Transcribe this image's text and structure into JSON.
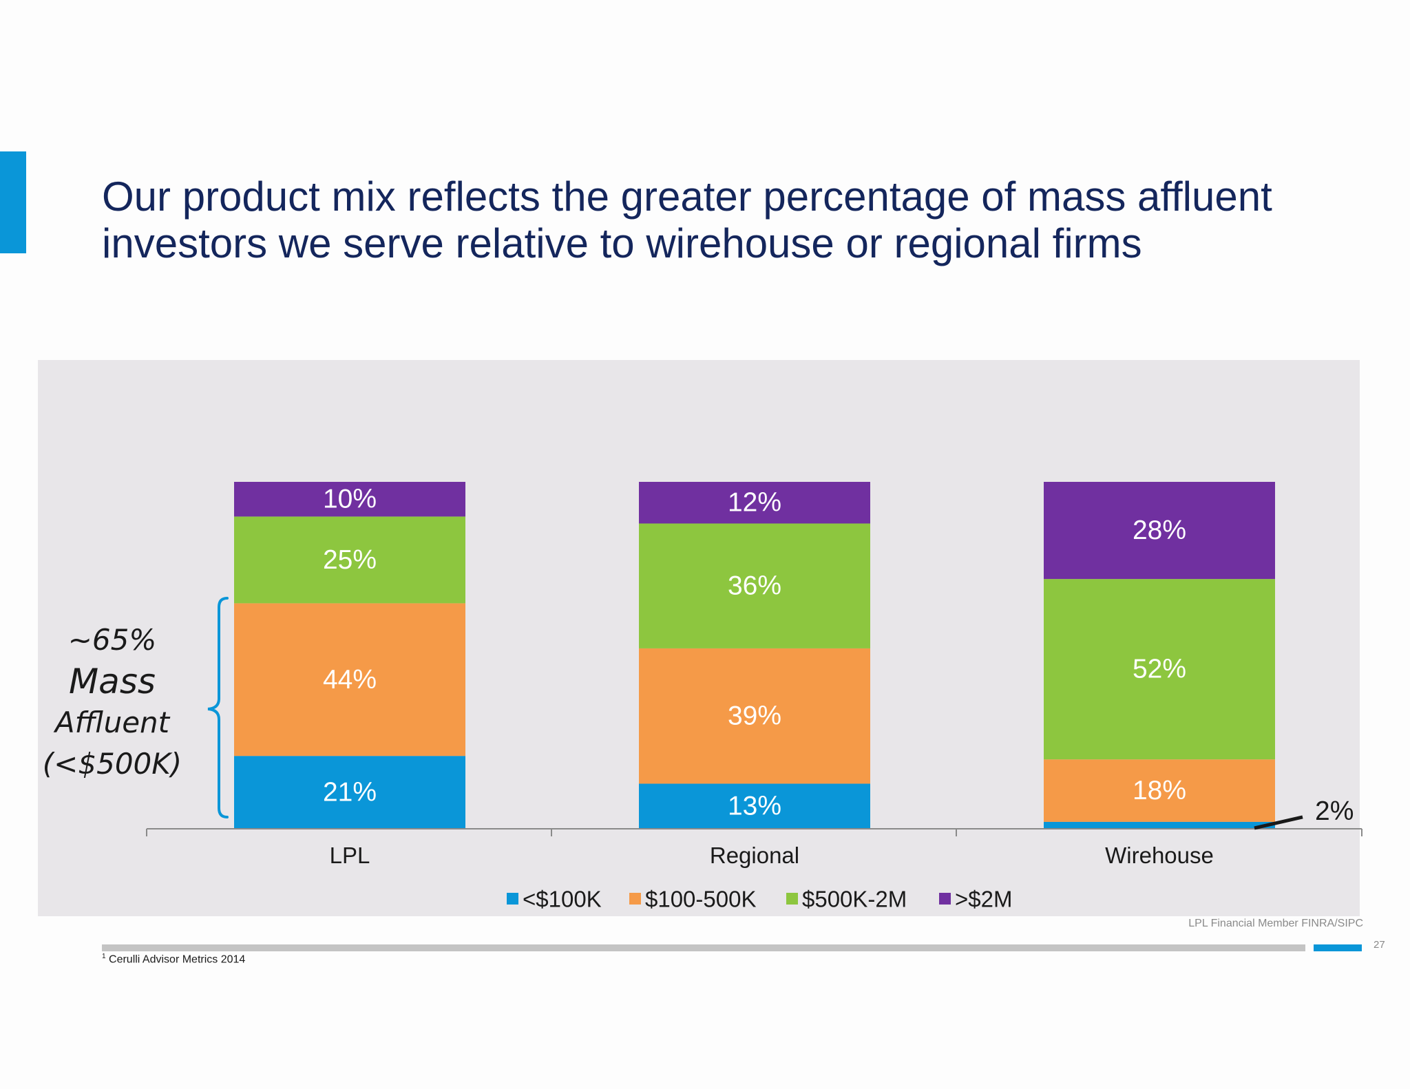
{
  "slide": {
    "title_line1": "Our product mix reflects the greater percentage of mass affluent",
    "title_line2": "investors we serve relative to wirehouse or regional firms",
    "member_text": "LPL Financial  Member FINRA/SIPC",
    "page_number": "27",
    "footnote_marker": "1",
    "footnote_text": "Cerulli Advisor Metrics 2014",
    "accent_color": "#0a96d8"
  },
  "bracket": {
    "line1": "~65%",
    "line2": "Mass",
    "line3": "Affluent",
    "line4": "(<$500K)"
  },
  "chart_data": {
    "type": "bar",
    "stacked": true,
    "categories": [
      "LPL",
      "Regional",
      "Wirehouse"
    ],
    "series": [
      {
        "name": "<$100K",
        "color": "#0a96d8",
        "values": [
          21,
          13,
          2
        ],
        "labels": [
          "21%",
          "13%",
          "2%"
        ]
      },
      {
        "name": "$100-500K",
        "color": "#f59a48",
        "values": [
          44,
          39,
          18
        ],
        "labels": [
          "44%",
          "39%",
          "18%"
        ]
      },
      {
        "name": "$500K-2M",
        "color": "#8dc63f",
        "values": [
          25,
          36,
          52
        ],
        "labels": [
          "25%",
          "36%",
          "52%"
        ]
      },
      {
        "name": ">$2M",
        "color": "#7030a0",
        "values": [
          10,
          12,
          28
        ],
        "labels": [
          "10%",
          "12%",
          "28%"
        ]
      }
    ],
    "ylim": [
      0,
      100
    ],
    "legend_position": "bottom",
    "title": "",
    "xlabel": "",
    "ylabel": ""
  }
}
